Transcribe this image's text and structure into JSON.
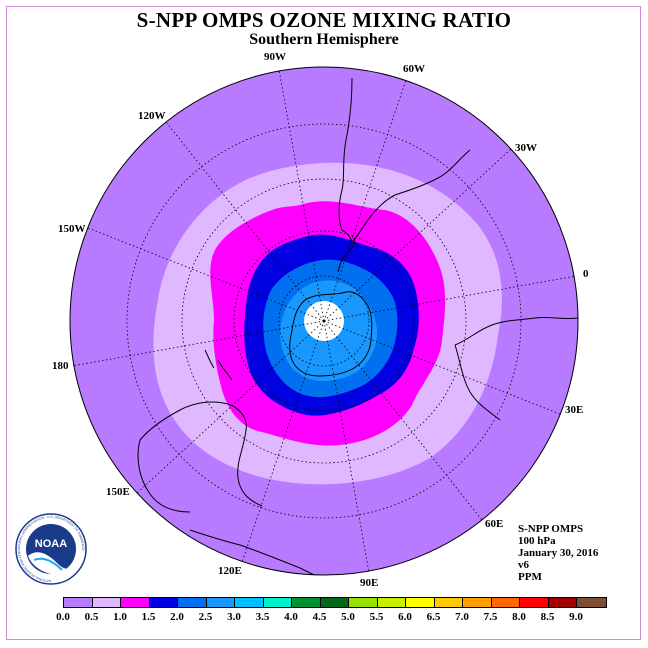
{
  "title": "S-NPP OMPS OZONE MIXING RATIO",
  "subtitle": "Southern Hemisphere",
  "logo_text": "NOAA",
  "logo_ring_text": "NATIONAL OCEANIC AND ATMOSPHERIC ADMINISTRATION · U.S. DEPARTMENT OF COMMERCE",
  "longitude_labels": [
    {
      "id": "90W",
      "text": "90W"
    },
    {
      "id": "60W",
      "text": "60W"
    },
    {
      "id": "120W",
      "text": "120W"
    },
    {
      "id": "30W",
      "text": "30W"
    },
    {
      "id": "150W",
      "text": "150W"
    },
    {
      "id": "0",
      "text": "0"
    },
    {
      "id": "180",
      "text": "180"
    },
    {
      "id": "30E",
      "text": "30E"
    },
    {
      "id": "150E",
      "text": "150E"
    },
    {
      "id": "60E",
      "text": "60E"
    },
    {
      "id": "120E",
      "text": "120E"
    },
    {
      "id": "90E",
      "text": "90E"
    }
  ],
  "info": {
    "instrument": "S-NPP OMPS",
    "level": "100 hPa",
    "date": "January 30, 2016",
    "version": "v6",
    "units": "PPM"
  },
  "colorbar": {
    "levels": [
      "0.0",
      "0.5",
      "1.0",
      "1.5",
      "2.0",
      "2.5",
      "3.0",
      "3.5",
      "4.0",
      "4.5",
      "5.0",
      "5.5",
      "6.0",
      "6.5",
      "7.0",
      "7.5",
      "8.0",
      "8.5",
      "9.0"
    ],
    "colors": [
      "#b87aff",
      "#e0b8ff",
      "#ff00ff",
      "#0000e0",
      "#0070f0",
      "#1898ff",
      "#00c0ff",
      "#00f0d0",
      "#009030",
      "#006818",
      "#98e000",
      "#c8f000",
      "#ffff00",
      "#ffc800",
      "#ffa000",
      "#ff6800",
      "#ff0000",
      "#a00000",
      "#7a5030"
    ]
  },
  "map_data": {
    "projection": "south polar stereographic",
    "contour_levels_shown": [
      {
        "range": "0.0-0.5",
        "color": "#b87aff"
      },
      {
        "range": "0.5-1.0",
        "color": "#e0b8ff"
      },
      {
        "range": "1.0-1.5",
        "color": "#ff00ff"
      },
      {
        "range": "1.5-2.0",
        "color": "#0000e0"
      },
      {
        "range": "2.0-2.5",
        "color": "#0070f0"
      },
      {
        "range": "2.5-3.0",
        "color": "#1898ff"
      },
      {
        "range": "no data",
        "color": "#ffffff"
      }
    ]
  }
}
